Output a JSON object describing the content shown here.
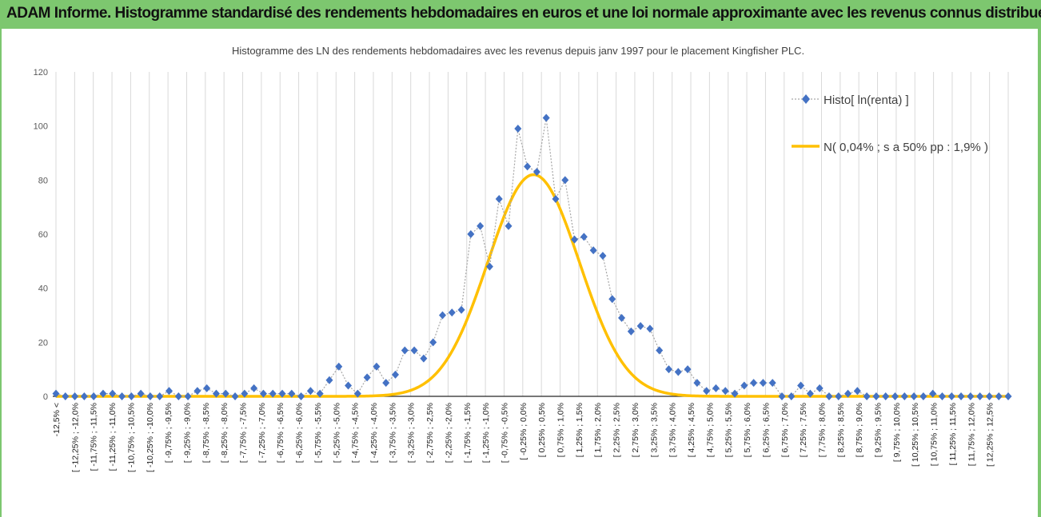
{
  "banner": {
    "title": "ADAM Informe. Histogramme standardisé des rendements hebdomadaires en euros et une loi normale approximante avec les revenus connus distribués"
  },
  "colors": {
    "banner_bg": "#7dc76f",
    "histogram": "#4472c4",
    "normal_curve": "#ffc000",
    "grid": "#d9d9d9"
  },
  "chart_data": {
    "type": "line",
    "title": "Histogramme  des LN des rendements hebdomadaires avec les revenus depuis janv 1997 pour le placement Kingfisher PLC.",
    "ylim": [
      0,
      120
    ],
    "yticks": [
      0,
      20,
      40,
      60,
      80,
      100,
      120
    ],
    "grid": "vertical",
    "legend_position": "top-right",
    "categories": [
      "-12,5% <",
      "[ -12,25% ; -12,0%",
      "[ -11,75% ; -11,5%",
      "[ -11,25% ; -11,0%",
      "[ -10,75% ; -10,5%",
      "[ -10,25% ; -10,0%",
      "[ -9,75% ; -9,5%",
      "[ -9,25% ; -9,0%",
      "[ -8,75% ; -8,5%",
      "[ -8,25% ; -8,0%",
      "[ -7,75% ; -7,5%",
      "[ -7,25% ; -7,0%",
      "[ -6,75% ; -6,5%",
      "[ -6,25% ; -6,0%",
      "[ -5,75% ; -5,5%",
      "[ -5,25% ; -5,0%",
      "[ -4,75% ; -4,5%",
      "[ -4,25% ; -4,0%",
      "[ -3,75% ; -3,5%",
      "[ -3,25% ; -3,0%",
      "[ -2,75% ; -2,5%",
      "[ -2,25% ; -2,0%",
      "[ -1,75% ; -1,5%",
      "[ -1,25% ; -1,0%",
      "[ -0,75% ; -0,5%",
      "[ -0,25% ; 0,0%",
      "[ 0,25% ; 0,5%",
      "[ 0,75% ; 1,0%",
      "[ 1,25% ; 1,5%",
      "[ 1,75% ; 2,0%",
      "[ 2,25% ; 2,5%",
      "[ 2,75% ; 3,0%",
      "[ 3,25% ; 3,5%",
      "[ 3,75% ; 4,0%",
      "[ 4,25% ; 4,5%",
      "[ 4,75% ; 5,0%",
      "[ 5,25% ; 5,5%",
      "[ 5,75% ; 6,0%",
      "[ 6,25% ; 6,5%",
      "[ 6,75% ; 7,0%",
      "[ 7,25% ; 7,5%",
      "[ 7,75% ; 8,0%",
      "[ 8,25% ; 8,5%",
      "[ 8,75% ; 9,0%",
      "[ 9,25% ; 9,5%",
      "[ 9,75% ; 10,0%",
      "[ 10,25% ; 10,5%",
      "[ 10,75% ; 11,0%",
      "[ 11,25% ; 11,5%",
      "[ 11,75% ; 12,0%",
      "[ 12,25% ; 12,5%"
    ],
    "histo_values": [
      1,
      0,
      0,
      0,
      0,
      1,
      1,
      0,
      0,
      1,
      0,
      0,
      2,
      0,
      0,
      2,
      3,
      1,
      1,
      0,
      1,
      3,
      1,
      1,
      1,
      1,
      0,
      2,
      1,
      6,
      11,
      4,
      1,
      7,
      11,
      5,
      8,
      17,
      17,
      14,
      20,
      30,
      31,
      32,
      60,
      63,
      48,
      73,
      63,
      99,
      85,
      83,
      103,
      73,
      80,
      58,
      59,
      54,
      52,
      36,
      29,
      24,
      26,
      25,
      17,
      10,
      9,
      10,
      5,
      2,
      3,
      2,
      1,
      4,
      5,
      5,
      5,
      0,
      0,
      4,
      1,
      3,
      0,
      0,
      1,
      2,
      0,
      0,
      0,
      0,
      0,
      0,
      0,
      1,
      0,
      0,
      0,
      0,
      0,
      0,
      0,
      0
    ],
    "series": [
      {
        "name": "Histo[ ln(renta) ]",
        "kind": "points",
        "color": "#4472c4",
        "ref": "histo_values"
      },
      {
        "name": "N( 0,04% ; s a 50% pp : 1,9% )",
        "kind": "normal",
        "color": "#ffc000",
        "mean_pct": 0.04,
        "peak": 82
      }
    ]
  }
}
